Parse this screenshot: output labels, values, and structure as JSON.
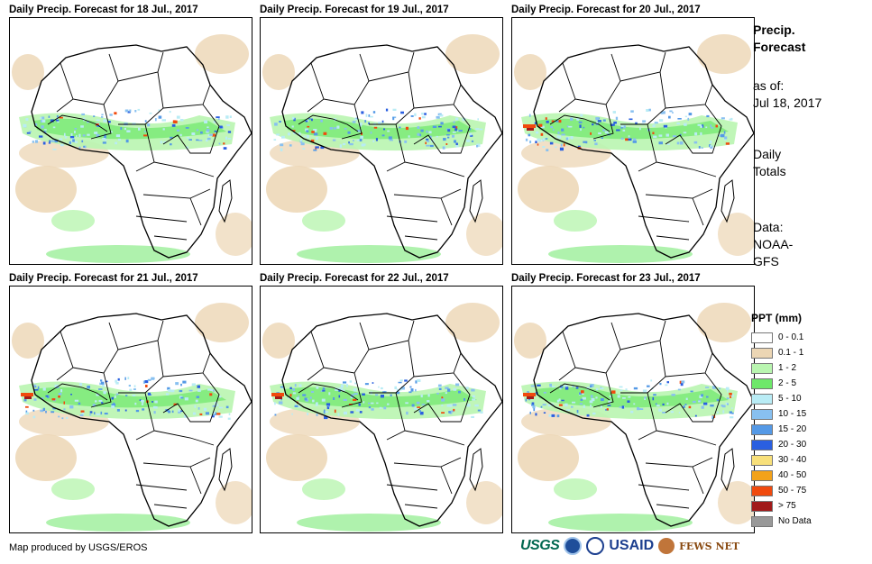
{
  "panels": [
    {
      "title": "Daily Precip. Forecast for 18 Jul., 2017"
    },
    {
      "title": "Daily Precip. Forecast for 19 Jul., 2017"
    },
    {
      "title": "Daily Precip. Forecast for 20 Jul., 2017"
    },
    {
      "title": "Daily Precip. Forecast for 21 Jul., 2017"
    },
    {
      "title": "Daily Precip. Forecast for 22 Jul., 2017"
    },
    {
      "title": "Daily Precip. Forecast for 23 Jul., 2017"
    }
  ],
  "sidebar": {
    "title_line1": "Precip.",
    "title_line2": "Forecast",
    "asof_label": "as of:",
    "asof_date": "Jul 18, 2017",
    "totals_line1": "Daily",
    "totals_line2": "Totals",
    "data_line1": "Data:",
    "data_line2": "NOAA-",
    "data_line3": "GFS"
  },
  "legend": {
    "title": "PPT (mm)",
    "items": [
      {
        "label": "0 - 0.1",
        "color": "#ffffff"
      },
      {
        "label": "0.1 - 1",
        "color": "#ecd6b4"
      },
      {
        "label": "1 - 2",
        "color": "#b9f5b0"
      },
      {
        "label": "2 - 5",
        "color": "#6ee86a"
      },
      {
        "label": "5 - 10",
        "color": "#b9ecf5"
      },
      {
        "label": "10 - 15",
        "color": "#88c0f0"
      },
      {
        "label": "15 - 20",
        "color": "#5499e6"
      },
      {
        "label": "20 - 30",
        "color": "#2a5fe0"
      },
      {
        "label": "30 - 40",
        "color": "#f8e07a"
      },
      {
        "label": "40 - 50",
        "color": "#f3a21a"
      },
      {
        "label": "50 - 75",
        "color": "#f04a0e"
      },
      {
        "label": "> 75",
        "color": "#a11a1a"
      },
      {
        "label": "No Data",
        "color": "#999999"
      }
    ]
  },
  "footer": {
    "credit": "Map produced by USGS/EROS"
  },
  "logos": {
    "usgs": "USGS",
    "usaid": "USAID",
    "fews": "FEWS NET"
  }
}
